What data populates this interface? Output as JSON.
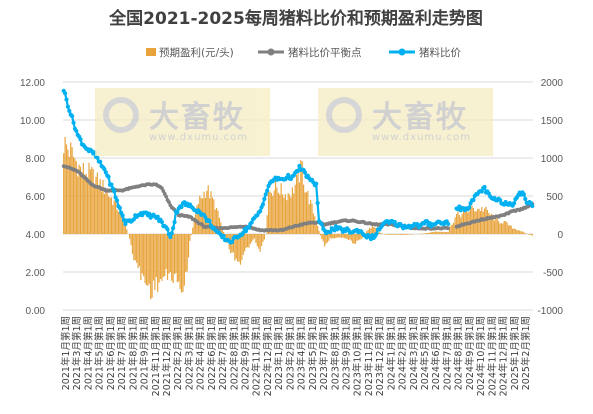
{
  "chart_data": {
    "type": "bar+line",
    "title": "全国2021-2025每周猪料比价和预期盈利走势图",
    "legend": [
      "预期盈利(元/头)",
      "猪料比价平衡点",
      "猪料比价"
    ],
    "left_axis": {
      "min": 0,
      "max": 12,
      "step": 2,
      "ticks": [
        "0.00",
        "2.00",
        "4.00",
        "6.00",
        "8.00",
        "10.00",
        "12.00"
      ]
    },
    "right_axis": {
      "min": -1000,
      "max": 2000,
      "step": 500,
      "ticks": [
        "-1000",
        "-500",
        "0",
        "500",
        "1000",
        "1500",
        "2000"
      ]
    },
    "x_labels": [
      "2021年1月第1周",
      "2021年3月第1周",
      "2021年4月第1周",
      "2021年5月第1周",
      "2021年6月第1周",
      "2021年7月第1周",
      "2021年8月第1周",
      "2021年9月第1周",
      "2021年11月第1周",
      "2021年12月第1周",
      "2022年2月第1周",
      "2022年3月第1周",
      "2022年4月第1周",
      "2022年6月第1周",
      "2022年7月第1周",
      "2022年8月第1周",
      "2022年9月第1周",
      "2022年11月第1周",
      "2022年12月第1周",
      "2023年1月第1周",
      "2023年2月第1周",
      "2023年4月第1周",
      "2023年5月第1周",
      "2023年7月第1周",
      "2023年8月第1周",
      "2023年9月第1周",
      "2023年10月第1周",
      "2023年11月第1周",
      "2023年12月第1周",
      "2024年1月第1周",
      "2024年2月第1周",
      "2024年3月第1周",
      "2024年5月第1周",
      "2024年6月第1周",
      "2024年7月第1周",
      "2024年8月第1周",
      "2024年9月第1周",
      "2024年10月第1周",
      "2024年11月第1周",
      "2024年12月第1周",
      "2025年1月第1周",
      "2025年2月第1周"
    ],
    "series": [
      {
        "name": "预期盈利(元/头)",
        "axis": "right",
        "kind": "bar",
        "keypoints": [
          [
            0,
            1200
          ],
          [
            5,
            1080
          ],
          [
            12,
            850
          ],
          [
            20,
            780
          ],
          [
            28,
            620
          ],
          [
            36,
            420
          ],
          [
            42,
            220
          ],
          [
            46,
            0
          ],
          [
            50,
            -300
          ],
          [
            54,
            -500
          ],
          [
            62,
            -740
          ],
          [
            72,
            -560
          ],
          [
            78,
            -550
          ],
          [
            85,
            -730
          ],
          [
            88,
            -500
          ],
          [
            90,
            -100
          ],
          [
            96,
            420
          ],
          [
            102,
            600
          ],
          [
            108,
            380
          ],
          [
            112,
            150
          ],
          [
            116,
            -100
          ],
          [
            120,
            -260
          ],
          [
            126,
            -370
          ],
          [
            131,
            -180
          ],
          [
            136,
            -70
          ],
          [
            140,
            -250
          ],
          [
            144,
            0
          ],
          [
            146,
            550
          ],
          [
            152,
            620
          ],
          [
            158,
            520
          ],
          [
            163,
            560
          ],
          [
            166,
            680
          ],
          [
            170,
            880
          ],
          [
            172,
            620
          ],
          [
            176,
            400
          ],
          [
            180,
            180
          ],
          [
            183,
            -20
          ],
          [
            186,
            -150
          ],
          [
            190,
            -60
          ],
          [
            196,
            -40
          ],
          [
            202,
            -60
          ],
          [
            207,
            -120
          ],
          [
            212,
            -80
          ],
          [
            216,
            40
          ],
          [
            220,
            100
          ],
          [
            225,
            20
          ],
          [
            230,
            -10
          ],
          [
            236,
            -10
          ],
          [
            244,
            -10
          ],
          [
            252,
            0
          ],
          [
            258,
            10
          ],
          [
            264,
            30
          ],
          [
            270,
            30
          ],
          [
            274,
            30
          ],
          [
            280,
            250
          ],
          [
            284,
            260
          ],
          [
            290,
            330
          ],
          [
            296,
            330
          ],
          [
            300,
            330
          ],
          [
            306,
            220
          ],
          [
            310,
            160
          ],
          [
            314,
            160
          ],
          [
            320,
            80
          ],
          [
            326,
            40
          ],
          [
            330,
            0
          ],
          [
            334,
            -20
          ]
        ]
      },
      {
        "name": "猪料比价平衡点",
        "axis": "left",
        "kind": "line",
        "keypoints": [
          [
            0,
            7.6
          ],
          [
            10,
            7.3
          ],
          [
            20,
            6.6
          ],
          [
            30,
            6.3
          ],
          [
            42,
            6.3
          ],
          [
            52,
            6.5
          ],
          [
            60,
            6.6
          ],
          [
            66,
            6.6
          ],
          [
            70,
            6.4
          ],
          [
            76,
            5.5
          ],
          [
            82,
            5.0
          ],
          [
            90,
            4.9
          ],
          [
            96,
            4.6
          ],
          [
            100,
            4.4
          ],
          [
            110,
            4.3
          ],
          [
            130,
            4.4
          ],
          [
            140,
            4.2
          ],
          [
            150,
            4.2
          ],
          [
            156,
            4.2
          ],
          [
            164,
            4.4
          ],
          [
            170,
            4.5
          ],
          [
            176,
            4.6
          ],
          [
            182,
            4.6
          ],
          [
            186,
            4.5
          ],
          [
            192,
            4.6
          ],
          [
            200,
            4.7
          ],
          [
            206,
            4.7
          ],
          [
            214,
            4.6
          ],
          [
            222,
            4.5
          ],
          [
            228,
            4.5
          ],
          [
            234,
            4.5
          ],
          [
            242,
            4.4
          ],
          [
            250,
            4.3
          ],
          [
            260,
            4.3
          ],
          [
            270,
            4.3
          ],
          [
            274,
            4.3
          ]
        ],
        "keypoints_2": [
          [
            280,
            4.4
          ],
          [
            290,
            4.6
          ],
          [
            300,
            4.8
          ],
          [
            308,
            4.9
          ],
          [
            314,
            5.0
          ],
          [
            320,
            5.2
          ],
          [
            326,
            5.3
          ],
          [
            332,
            5.5
          ],
          [
            334,
            5.6
          ]
        ]
      },
      {
        "name": "猪料比价",
        "axis": "left",
        "kind": "line",
        "keypoints": [
          [
            0,
            11.6
          ],
          [
            3,
            10.8
          ],
          [
            6,
            10.1
          ],
          [
            10,
            9.2
          ],
          [
            14,
            8.7
          ],
          [
            18,
            8.4
          ],
          [
            22,
            8.2
          ],
          [
            26,
            7.7
          ],
          [
            30,
            7.3
          ],
          [
            33,
            6.7
          ],
          [
            36,
            6.2
          ],
          [
            40,
            5.3
          ],
          [
            44,
            4.6
          ],
          [
            48,
            4.7
          ],
          [
            52,
            5.0
          ],
          [
            56,
            5.1
          ],
          [
            60,
            5.0
          ],
          [
            66,
            4.9
          ],
          [
            70,
            4.6
          ],
          [
            74,
            4.2
          ],
          [
            76,
            3.9
          ],
          [
            78,
            4.3
          ],
          [
            80,
            5.1
          ],
          [
            82,
            5.4
          ],
          [
            86,
            5.6
          ],
          [
            92,
            5.4
          ],
          [
            98,
            5.1
          ],
          [
            104,
            4.6
          ],
          [
            110,
            4.0
          ],
          [
            116,
            3.7
          ],
          [
            120,
            3.6
          ],
          [
            124,
            3.9
          ],
          [
            128,
            4.1
          ],
          [
            132,
            4.4
          ],
          [
            136,
            4.8
          ],
          [
            140,
            5.2
          ],
          [
            144,
            6.1
          ],
          [
            148,
            6.8
          ],
          [
            152,
            6.9
          ],
          [
            156,
            6.9
          ],
          [
            160,
            7.0
          ],
          [
            164,
            7.0
          ],
          [
            168,
            7.5
          ],
          [
            172,
            7.2
          ],
          [
            176,
            6.8
          ],
          [
            180,
            6.6
          ],
          [
            182,
            4.7
          ],
          [
            186,
            4.1
          ],
          [
            190,
            4.2
          ],
          [
            194,
            4.3
          ],
          [
            198,
            4.2
          ],
          [
            202,
            4.2
          ],
          [
            206,
            4.1
          ],
          [
            210,
            4.2
          ],
          [
            214,
            4.0
          ],
          [
            218,
            3.8
          ],
          [
            222,
            3.9
          ],
          [
            226,
            4.4
          ],
          [
            230,
            4.6
          ],
          [
            234,
            4.6
          ],
          [
            238,
            4.5
          ],
          [
            242,
            4.4
          ],
          [
            246,
            4.4
          ],
          [
            250,
            4.5
          ],
          [
            254,
            4.4
          ],
          [
            258,
            4.6
          ],
          [
            262,
            4.5
          ],
          [
            266,
            4.6
          ],
          [
            270,
            4.6
          ],
          [
            274,
            4.6
          ]
        ],
        "keypoints_2": [
          [
            280,
            5.4
          ],
          [
            284,
            5.3
          ],
          [
            288,
            5.4
          ],
          [
            292,
            5.8
          ],
          [
            296,
            6.2
          ],
          [
            300,
            6.4
          ],
          [
            304,
            5.9
          ],
          [
            308,
            5.8
          ],
          [
            312,
            5.7
          ],
          [
            316,
            5.6
          ],
          [
            320,
            5.6
          ],
          [
            324,
            6.1
          ],
          [
            328,
            6.1
          ],
          [
            330,
            5.7
          ],
          [
            334,
            5.5
          ]
        ]
      }
    ]
  },
  "watermark": {
    "brand": "大畜牧",
    "site": "www.dxumu.com"
  }
}
